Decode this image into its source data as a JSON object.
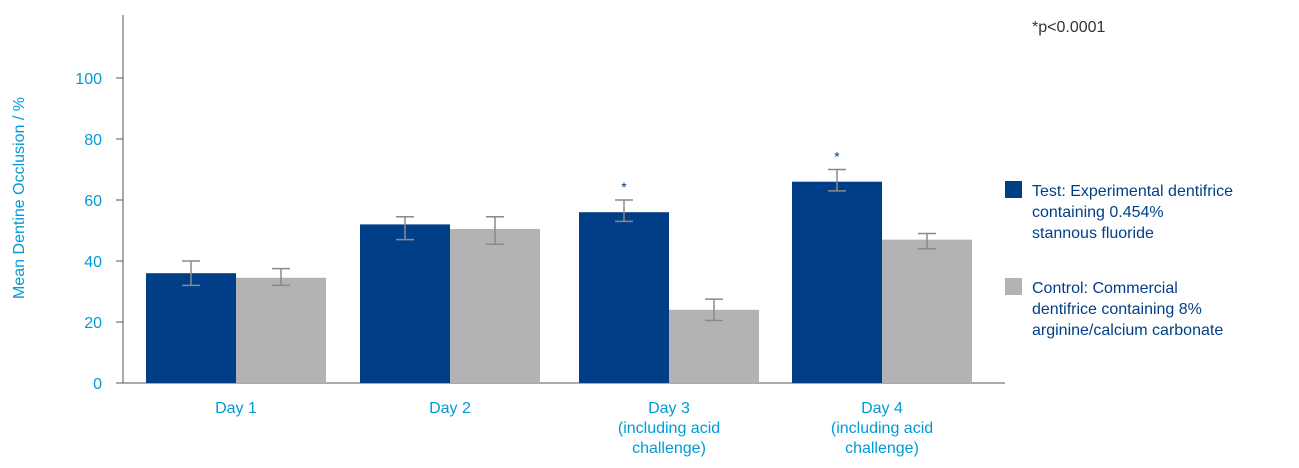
{
  "chart_data": {
    "type": "bar",
    "title": "",
    "ylabel": "Mean Dentine Occlusion / %",
    "xlabel": "",
    "ylim": [
      0,
      120
    ],
    "yticks": [
      0,
      20,
      40,
      60,
      80,
      100
    ],
    "grid": false,
    "legend_position": "right",
    "categories": [
      [
        "Day 1"
      ],
      [
        "Day 2"
      ],
      [
        "Day 3",
        "(including acid",
        "challenge)"
      ],
      [
        "Day 4",
        "(including acid",
        "challenge)"
      ]
    ],
    "series": [
      {
        "name": "Test: Experimental dentifrice containing 0.454% stannous fluoride",
        "legend_lines": [
          "Test: Experimental dentifrice",
          "containing 0.454%",
          "stannous fluoride"
        ],
        "color": "#003f87",
        "values": [
          36,
          52,
          56,
          66
        ],
        "error_low": [
          32,
          47,
          53,
          63
        ],
        "error_high": [
          40,
          54.5,
          60,
          70
        ],
        "significance": [
          "",
          "",
          "*",
          "*"
        ]
      },
      {
        "name": "Control: Commercial dentifrice containing 8% arginine/calcium carbonate",
        "legend_lines": [
          "Control: Commercial",
          "dentifrice containing 8%",
          "arginine/calcium carbonate"
        ],
        "color": "#b3b3b3",
        "values": [
          34.5,
          50.5,
          24,
          47
        ],
        "error_low": [
          32,
          45.5,
          20.5,
          44
        ],
        "error_high": [
          37.5,
          54.5,
          27.5,
          49
        ],
        "significance": [
          "",
          "",
          "",
          ""
        ]
      }
    ],
    "annotation": "*p<0.0001",
    "axis_color": "#009ad8",
    "text_color": "#003f87"
  }
}
